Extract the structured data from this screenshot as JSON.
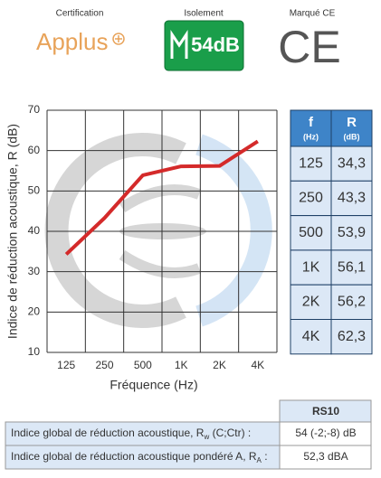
{
  "header": {
    "certification_label": "Certification",
    "certification_logo": "Applus",
    "isolation_label": "Isolement",
    "isolation_badge": "54dB",
    "ce_label": "Marqué CE",
    "ce_logo": "CE"
  },
  "chart_data": {
    "type": "line",
    "categories": [
      "125",
      "250",
      "500",
      "1K",
      "2K",
      "4K"
    ],
    "values": [
      34.3,
      43.3,
      53.9,
      56.1,
      56.2,
      62.3
    ],
    "color": "#d42a2a",
    "ylim": [
      10,
      70
    ],
    "yticks": [
      10,
      20,
      30,
      40,
      50,
      60,
      70
    ],
    "grid": true,
    "x_label": "Fréquence (Hz)",
    "y_label": "Indice de réduction acoustique, R (dB)"
  },
  "frequency_table": {
    "header": [
      [
        "f",
        "(Hz)"
      ],
      [
        "R",
        "(dB)"
      ]
    ],
    "rows": [
      [
        "125",
        "34,3"
      ],
      [
        "250",
        "43,3"
      ],
      [
        "500",
        "53,9"
      ],
      [
        "1K",
        "56,1"
      ],
      [
        "2K",
        "56,2"
      ],
      [
        "4K",
        "62,3"
      ]
    ]
  },
  "summary_table": {
    "header": "RS10",
    "rows": [
      [
        [
          "Indice global de réduction acoustique, R",
          "w",
          " (C;Ctr) :"
        ],
        "54 (-2;-8) dB"
      ],
      [
        [
          "Indice global de réduction acoustique pondéré A, R",
          "A",
          " :"
        ],
        "52,3 dBA"
      ]
    ]
  }
}
